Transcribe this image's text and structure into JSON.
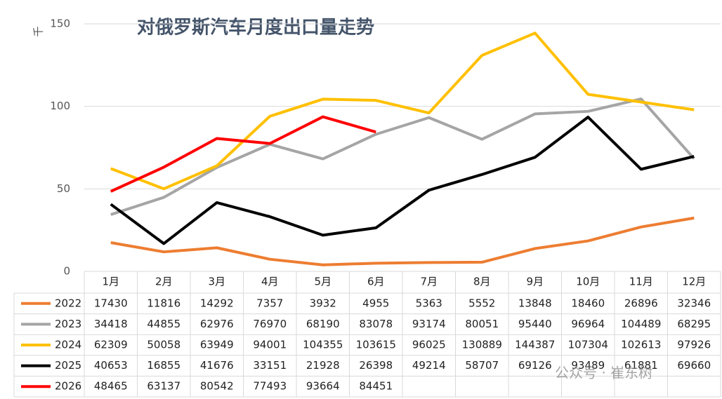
{
  "chart_data": {
    "type": "line",
    "title": "对俄罗斯汽车月度出口量走势",
    "ylabel": "千",
    "categories": [
      "1月",
      "2月",
      "3月",
      "4月",
      "5月",
      "6月",
      "7月",
      "8月",
      "9月",
      "10月",
      "11月",
      "12月"
    ],
    "ylim": [
      0,
      150
    ],
    "yticks": [
      0,
      50,
      100,
      150
    ],
    "grid": true,
    "series": [
      {
        "name": "2022",
        "color": "#ed7d31",
        "values": [
          17.43,
          11.816,
          14.292,
          7.357,
          3.932,
          4.955,
          5.363,
          5.552,
          13.848,
          18.46,
          26.896,
          32.346
        ],
        "value_labels": [
          "17430",
          "11816",
          "14292",
          "7357",
          "3932",
          "4955",
          "5363",
          "5552",
          "13848",
          "18460",
          "26896",
          "32346"
        ]
      },
      {
        "name": "2023",
        "color": "#a5a5a5",
        "values": [
          34.418,
          44.855,
          62.976,
          76.97,
          68.19,
          83.078,
          93.174,
          80.051,
          95.44,
          96.964,
          104.489,
          68.295
        ],
        "value_labels": [
          "34418",
          "44855",
          "62976",
          "76970",
          "68190",
          "83078",
          "93174",
          "80051",
          "95440",
          "96964",
          "104489",
          "68295"
        ]
      },
      {
        "name": "2024",
        "color": "#ffc000",
        "values": [
          62.309,
          50.058,
          63.949,
          94.001,
          104.355,
          103.615,
          96.025,
          130.889,
          144.387,
          107.304,
          102.613,
          97.926
        ],
        "value_labels": [
          "62309",
          "50058",
          "63949",
          "94001",
          "104355",
          "103615",
          "96025",
          "130889",
          "144387",
          "107304",
          "102613",
          "97926"
        ]
      },
      {
        "name": "2025",
        "color": "#000000",
        "values": [
          40.653,
          16.855,
          41.676,
          33.151,
          21.928,
          26.398,
          49.214,
          58.707,
          69.126,
          93.489,
          61.881,
          69.66
        ],
        "value_labels": [
          "40653",
          "16855",
          "41676",
          "33151",
          "21928",
          "26398",
          "49214",
          "58707",
          "69126",
          "93489",
          "61881",
          "69660"
        ]
      },
      {
        "name": "2026",
        "color": "#ff0000",
        "values": [
          48.465,
          63.137,
          80.542,
          77.493,
          93.664,
          84.451,
          null,
          null,
          null,
          null,
          null,
          null
        ],
        "value_labels": [
          "48465",
          "63137",
          "80542",
          "77493",
          "93664",
          "84451",
          null,
          null,
          null,
          null,
          null,
          null
        ]
      }
    ],
    "watermark": "公众号 · 崔东树"
  }
}
